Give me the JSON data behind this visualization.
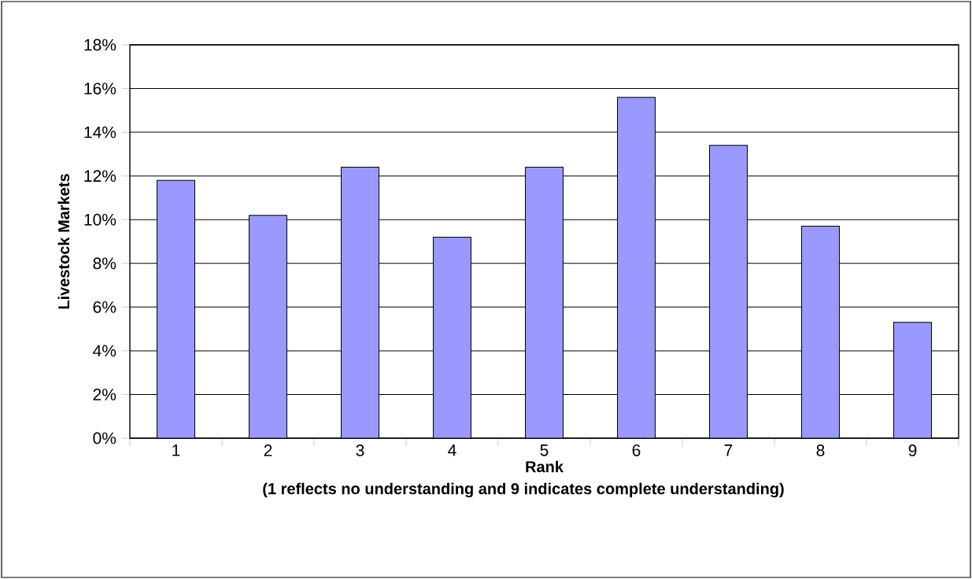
{
  "chart_data": {
    "type": "bar",
    "xlabel": "Rank",
    "ylabel": "Livestock Markets",
    "annotations": [
      "(1 reflects no understanding and 9 indicates complete understanding)"
    ],
    "categories": [
      "1",
      "2",
      "3",
      "4",
      "5",
      "6",
      "7",
      "8",
      "9"
    ],
    "values": [
      11.8,
      10.2,
      12.4,
      9.2,
      12.4,
      15.6,
      13.4,
      9.7,
      5.3
    ],
    "color": "#9999ff",
    "ylim": [
      0,
      18
    ],
    "yticks": [
      {
        "value": 0,
        "label": "0%"
      },
      {
        "value": 2,
        "label": "2%"
      },
      {
        "value": 4,
        "label": "4%"
      },
      {
        "value": 6,
        "label": "6%"
      },
      {
        "value": 8,
        "label": "8%"
      },
      {
        "value": 10,
        "label": "10%"
      },
      {
        "value": 12,
        "label": "12%"
      },
      {
        "value": 14,
        "label": "14%"
      },
      {
        "value": 16,
        "label": "16%"
      },
      {
        "value": 18,
        "label": "18%"
      }
    ],
    "grid": "y"
  }
}
